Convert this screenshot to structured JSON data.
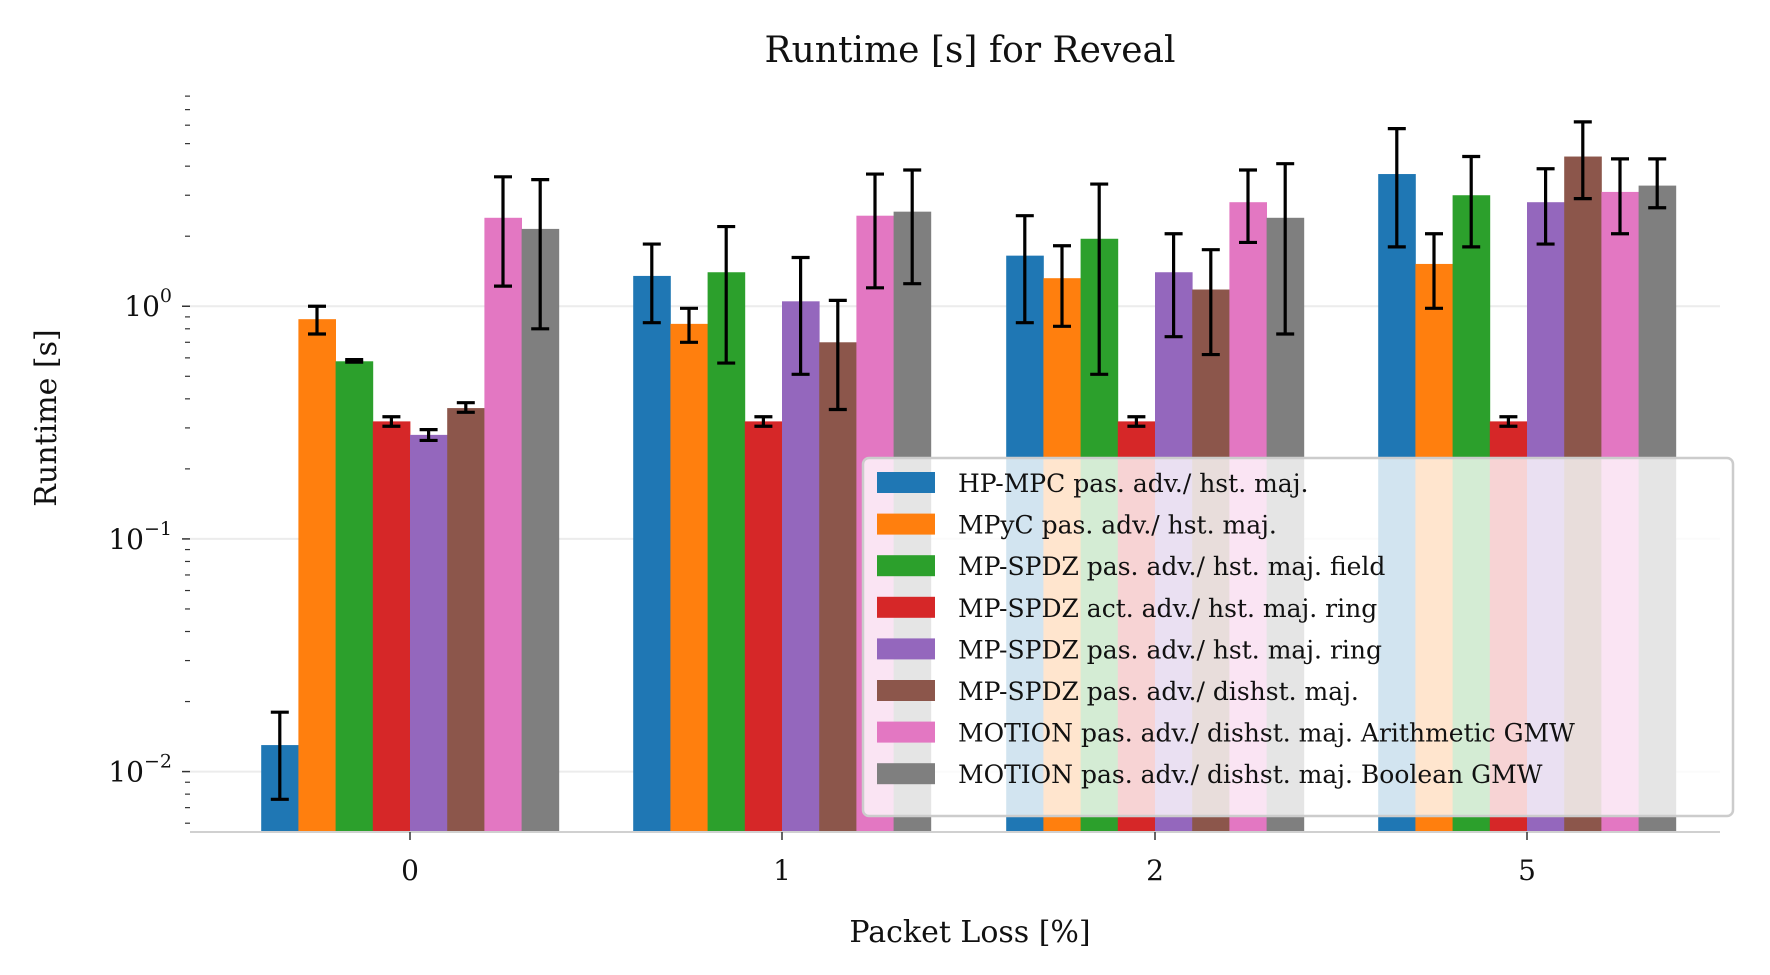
{
  "chart_data": {
    "type": "bar",
    "title": "Runtime [s] for Reveal",
    "xlabel": "Packet Loss [%]",
    "ylabel": "Runtime [s]",
    "yscale": "log",
    "ylim": [
      0.0055,
      8.5
    ],
    "grid": true,
    "legend_position": "bottom-right",
    "categories": [
      "0",
      "1",
      "2",
      "5"
    ],
    "y_ticks": [
      {
        "value": 0.01,
        "base": "10",
        "exp": "−2"
      },
      {
        "value": 0.1,
        "base": "10",
        "exp": "−1"
      },
      {
        "value": 1,
        "base": "10",
        "exp": "0"
      }
    ],
    "series": [
      {
        "name": "HP-MPC pas. adv./ hst. maj.",
        "color": "#1f77b4",
        "values": [
          0.013,
          1.35,
          1.65,
          3.7
        ],
        "err_low": [
          0.0076,
          0.85,
          0.85,
          1.8
        ],
        "err_high": [
          0.018,
          1.85,
          2.45,
          5.8
        ]
      },
      {
        "name": "MPyC pas. adv./ hst. maj.",
        "color": "#ff7f0e",
        "values": [
          0.88,
          0.84,
          1.32,
          1.52
        ],
        "err_low": [
          0.76,
          0.7,
          0.82,
          0.98
        ],
        "err_high": [
          1.0,
          0.98,
          1.82,
          2.05
        ]
      },
      {
        "name": "MP-SPDZ pas. adv./ hst. maj. field",
        "color": "#2ca02c",
        "values": [
          0.58,
          1.4,
          1.95,
          3.0
        ],
        "err_low": [
          0.575,
          0.57,
          0.51,
          1.8
        ],
        "err_high": [
          0.59,
          2.2,
          3.35,
          4.4
        ]
      },
      {
        "name": "MP-SPDZ act. adv./ hst. maj. ring",
        "color": "#d62728",
        "values": [
          0.32,
          0.32,
          0.32,
          0.32
        ],
        "err_low": [
          0.305,
          0.305,
          0.305,
          0.305
        ],
        "err_high": [
          0.335,
          0.335,
          0.335,
          0.335
        ]
      },
      {
        "name": "MP-SPDZ pas. adv./ hst. maj. ring",
        "color": "#9467bd",
        "values": [
          0.28,
          1.05,
          1.4,
          2.8
        ],
        "err_low": [
          0.265,
          0.51,
          0.74,
          1.85
        ],
        "err_high": [
          0.295,
          1.62,
          2.05,
          3.9
        ]
      },
      {
        "name": "MP-SPDZ pas. adv./ dishst. maj.",
        "color": "#8c564b",
        "values": [
          0.365,
          0.7,
          1.18,
          4.4
        ],
        "err_low": [
          0.35,
          0.36,
          0.62,
          2.9
        ],
        "err_high": [
          0.385,
          1.06,
          1.75,
          6.2
        ]
      },
      {
        "name": "MOTION pas. adv./ dishst. maj. Arithmetic GMW",
        "color": "#e377c2",
        "values": [
          2.4,
          2.45,
          2.8,
          3.1
        ],
        "err_low": [
          1.22,
          1.2,
          1.88,
          2.05
        ],
        "err_high": [
          3.6,
          3.7,
          3.85,
          4.3
        ]
      },
      {
        "name": "MOTION pas. adv./ dishst. maj. Boolean GMW",
        "color": "#7f7f7f",
        "values": [
          2.15,
          2.55,
          2.4,
          3.3
        ],
        "err_low": [
          0.8,
          1.25,
          0.76,
          2.65
        ],
        "err_high": [
          3.5,
          3.85,
          4.1,
          4.3
        ]
      }
    ]
  }
}
